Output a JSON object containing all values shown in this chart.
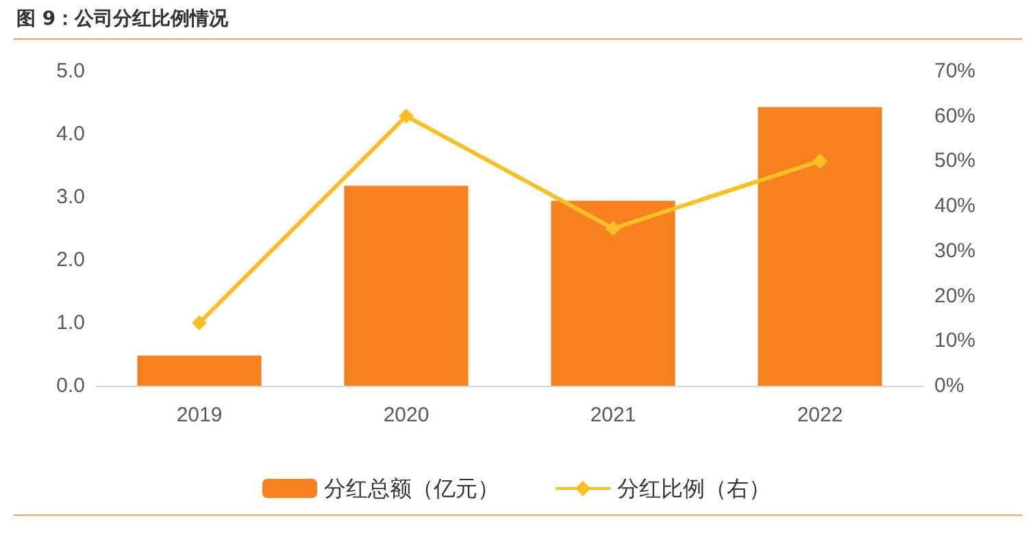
{
  "chart_data": {
    "type": "bar",
    "title": "图 9：公司分红比例情况",
    "categories": [
      "2019",
      "2020",
      "2021",
      "2022"
    ],
    "series": [
      {
        "name": "分红总额（亿元）",
        "color": "#f5821f",
        "values": [
          0.48,
          3.18,
          2.94,
          4.43
        ]
      },
      {
        "name": "分红比例（右）",
        "type": "line",
        "axis": "y2",
        "color": "#fbbf24",
        "marker": "diamond",
        "values": [
          14,
          60,
          35,
          50
        ]
      }
    ],
    "ylim": [
      0,
      5
    ],
    "yticks": [
      {
        "value": 0,
        "label": "0.0"
      },
      {
        "value": 1,
        "label": "1.0"
      },
      {
        "value": 2,
        "label": "2.0"
      },
      {
        "value": 3,
        "label": "3.0"
      },
      {
        "value": 4,
        "label": "4.0"
      },
      {
        "value": 5,
        "label": "5.0"
      }
    ],
    "y2lim": [
      0,
      70
    ],
    "y2ticks": [
      {
        "value": 0,
        "label": "0%"
      },
      {
        "value": 10,
        "label": "10%"
      },
      {
        "value": 20,
        "label": "20%"
      },
      {
        "value": 30,
        "label": "30%"
      },
      {
        "value": 40,
        "label": "40%"
      },
      {
        "value": 50,
        "label": "50%"
      },
      {
        "value": 60,
        "label": "60%"
      },
      {
        "value": 70,
        "label": "70%"
      }
    ],
    "grid": false,
    "legend": "bottom"
  }
}
